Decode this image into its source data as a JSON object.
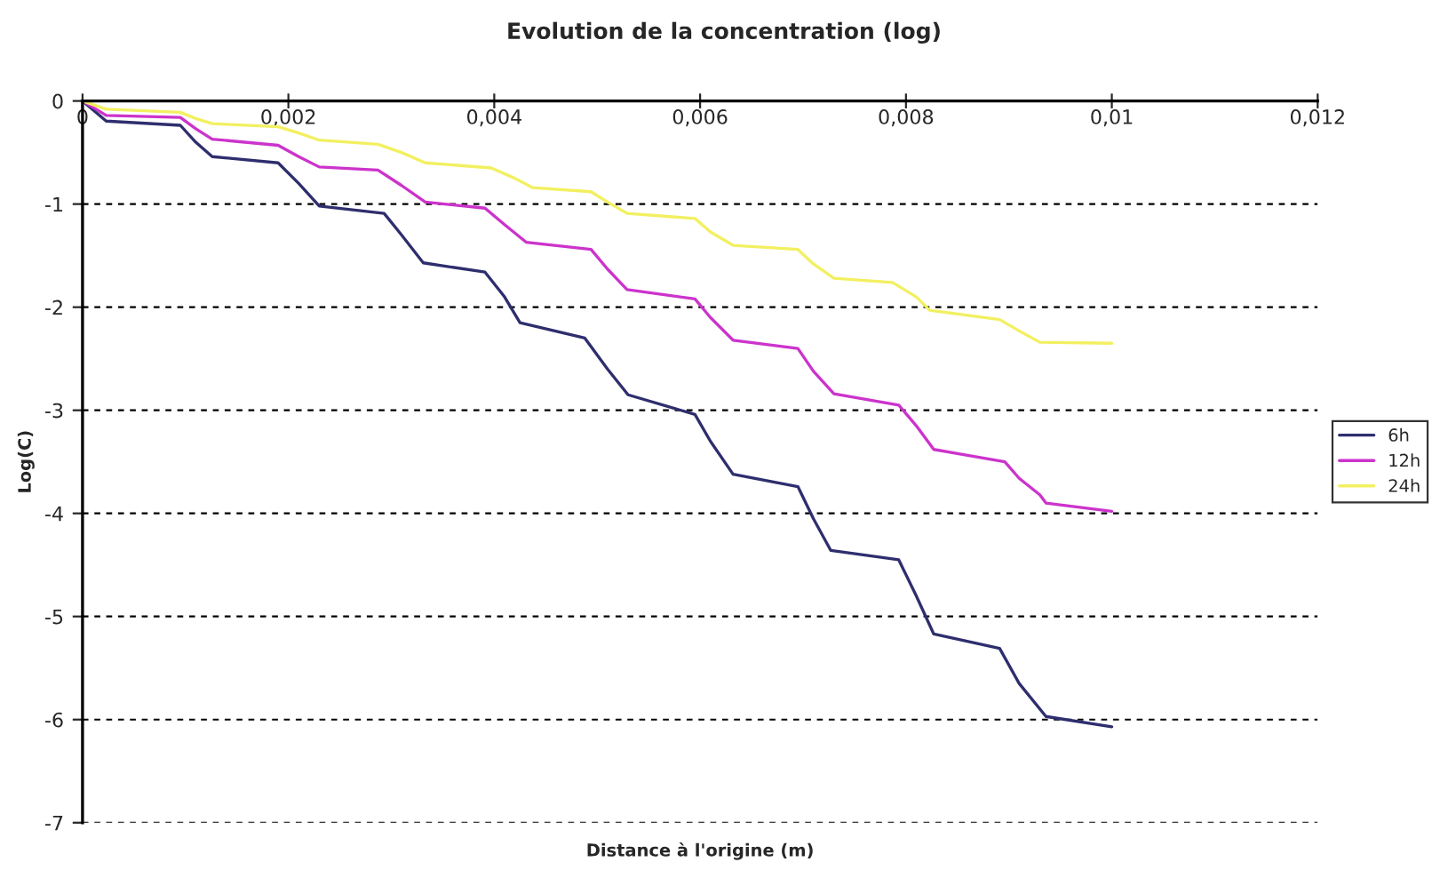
{
  "chart_data": {
    "type": "line",
    "title": "Evolution de la concentration (log)",
    "xlabel": "Distance à l'origine (m)",
    "ylabel": "Log(C)",
    "xlim": [
      0,
      0.012
    ],
    "ylim": [
      -7,
      0
    ],
    "xticks": [
      0,
      {
        "value": 0.002,
        "label": "0,002"
      },
      {
        "value": 0.004,
        "label": "0,004"
      },
      {
        "value": 0.006,
        "label": "0,006"
      },
      {
        "value": 0.008,
        "label": "0,008"
      },
      {
        "value": 0.01,
        "label": "0,01"
      },
      {
        "value": 0.012,
        "label": "0,012"
      }
    ],
    "yticks": [
      -7,
      -6,
      -5,
      -4,
      -3,
      -2,
      -1,
      0
    ],
    "grid": "y",
    "legend": "right",
    "marker": "none",
    "line_style": "solid",
    "series": [
      {
        "name": "6h",
        "color": "#2e2e6e",
        "x": [
          0,
          0.00023,
          0.00095,
          0.0011,
          0.00126,
          0.0019,
          0.0021,
          0.0023,
          0.00293,
          0.0031,
          0.00331,
          0.00391,
          0.0041,
          0.00425,
          0.00488,
          0.0051,
          0.0053,
          0.00595,
          0.0061,
          0.00632,
          0.00695,
          0.0071,
          0.00727,
          0.00793,
          0.0081,
          0.00827,
          0.00891,
          0.0091,
          0.00936,
          0.01
        ],
        "values": [
          0,
          -0.195,
          -0.236,
          -0.4,
          -0.54,
          -0.6,
          -0.8,
          -1.02,
          -1.09,
          -1.3,
          -1.57,
          -1.66,
          -1.9,
          -2.15,
          -2.3,
          -2.6,
          -2.85,
          -3.04,
          -3.3,
          -3.62,
          -3.74,
          -4.05,
          -4.36,
          -4.45,
          -4.8,
          -5.17,
          -5.31,
          -5.65,
          -5.97,
          -6.07
        ]
      },
      {
        "name": "12h",
        "color": "#cc33cc",
        "x": [
          0,
          0.00023,
          0.00095,
          0.0011,
          0.00126,
          0.0019,
          0.0021,
          0.0023,
          0.00287,
          0.0031,
          0.00333,
          0.00391,
          0.0041,
          0.00431,
          0.00494,
          0.0051,
          0.00529,
          0.00595,
          0.0061,
          0.00632,
          0.00695,
          0.0071,
          0.0073,
          0.00793,
          0.0081,
          0.00827,
          0.00896,
          0.0091,
          0.0093,
          0.00936,
          0.01
        ],
        "values": [
          0,
          -0.14,
          -0.16,
          -0.27,
          -0.37,
          -0.43,
          -0.54,
          -0.64,
          -0.67,
          -0.82,
          -0.98,
          -1.04,
          -1.2,
          -1.37,
          -1.44,
          -1.63,
          -1.83,
          -1.92,
          -2.1,
          -2.32,
          -2.4,
          -2.62,
          -2.84,
          -2.95,
          -3.15,
          -3.38,
          -3.5,
          -3.66,
          -3.82,
          -3.9,
          -3.98
        ]
      },
      {
        "name": "24h",
        "color": "#f2f060",
        "x": [
          0,
          0.00023,
          0.00095,
          0.0011,
          0.00126,
          0.0019,
          0.0021,
          0.0023,
          0.00287,
          0.0031,
          0.00333,
          0.00397,
          0.0042,
          0.00437,
          0.00494,
          0.0051,
          0.00529,
          0.00595,
          0.0061,
          0.00632,
          0.00695,
          0.0071,
          0.0073,
          0.00787,
          0.0081,
          0.00823,
          0.00891,
          0.0091,
          0.0093,
          0.01
        ],
        "values": [
          0,
          -0.08,
          -0.11,
          -0.17,
          -0.22,
          -0.25,
          -0.31,
          -0.38,
          -0.42,
          -0.5,
          -0.6,
          -0.65,
          -0.75,
          -0.84,
          -0.88,
          -0.98,
          -1.09,
          -1.14,
          -1.27,
          -1.4,
          -1.44,
          -1.58,
          -1.72,
          -1.76,
          -1.9,
          -2.03,
          -2.12,
          -2.23,
          -2.34,
          -2.35
        ]
      }
    ]
  }
}
